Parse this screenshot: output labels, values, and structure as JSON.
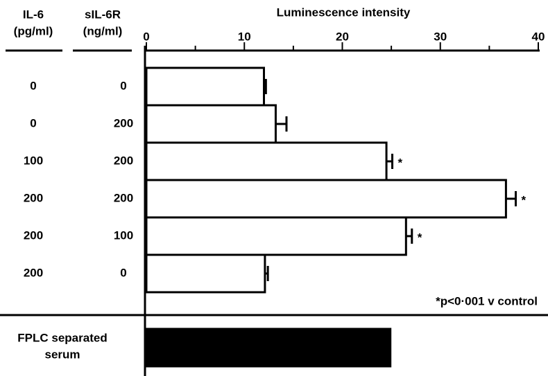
{
  "chart_data": {
    "type": "bar",
    "title": "Luminescence intensity",
    "column_headers": [
      [
        "IL-6",
        "(pg/ml)"
      ],
      [
        "sIL-6R",
        "(ng/ml)"
      ]
    ],
    "il6": [
      "0",
      "0",
      "100",
      "200",
      "200",
      "200"
    ],
    "sil6r": [
      "0",
      "200",
      "200",
      "200",
      "100",
      "0"
    ],
    "series": [
      {
        "color": "#ffffff",
        "values": [
          12.0,
          13.2,
          24.5,
          36.7,
          26.5,
          12.1
        ],
        "errors": [
          0.2,
          1.1,
          0.6,
          1.0,
          0.6,
          0.3
        ],
        "markers": [
          null,
          null,
          "*",
          "*",
          "*",
          null
        ]
      }
    ],
    "reference": {
      "label": [
        "FPLC separated",
        "serum"
      ],
      "value": 24.9,
      "color": "#000000"
    },
    "annotation": "*p<0·001 v control",
    "xlim": [
      0,
      40
    ],
    "xticks": [
      0,
      10,
      20,
      30,
      40
    ],
    "minor_xticks": [
      5,
      15,
      25,
      35
    ]
  }
}
